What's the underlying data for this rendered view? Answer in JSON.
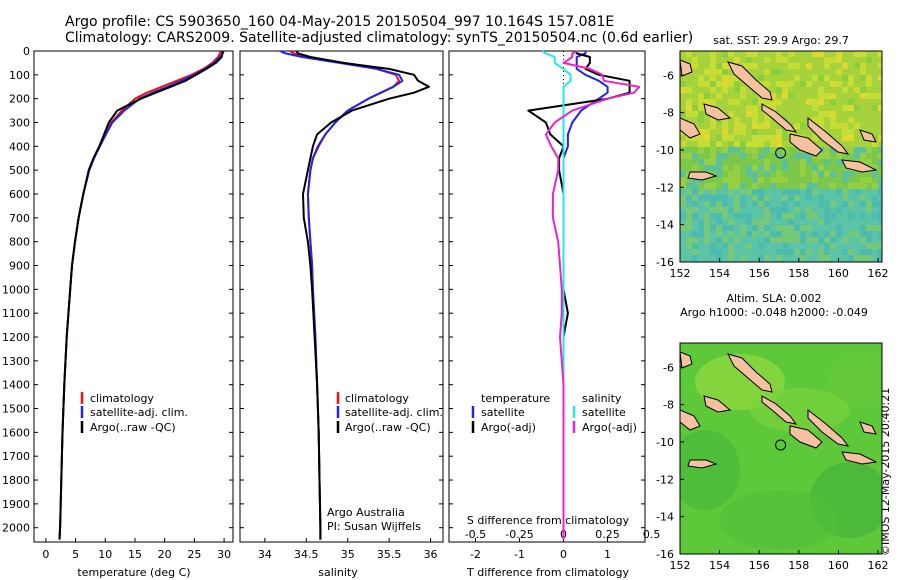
{
  "header": {
    "line1": "Argo profile: CS 5903650_160 04-May-2015 20150504_997 10.164S 157.081E",
    "line2": "Climatology: CARS2009. Satellite-adjusted climatology: synTS_20150504.nc (0.6d earlier)"
  },
  "credit": "©IMOS 12-May-2015 20:40:21",
  "colors": {
    "climatology": "#ee1111",
    "satellite": "#2222ee",
    "argo": "#000000",
    "satellite_s": "#22e8ee",
    "argo_s": "#ee22cc"
  },
  "chart_data": [
    {
      "type": "line",
      "title": "",
      "xlabel": "temperature (deg C)",
      "ylabel": "",
      "xlim": [
        -2,
        31.5
      ],
      "ylim": [
        2060,
        0
      ],
      "xticks": [
        0,
        5,
        10,
        15,
        20,
        25,
        30
      ],
      "yticks": [
        0,
        100,
        200,
        300,
        400,
        500,
        600,
        700,
        800,
        900,
        1000,
        1100,
        1200,
        1300,
        1400,
        1500,
        1600,
        1700,
        1800,
        1900,
        2000
      ],
      "legend": {
        "position": "bottom-left",
        "entries": [
          "climatology",
          "satellite-adj. clim.",
          "Argo(..raw -QC)"
        ]
      },
      "depth": [
        0,
        10,
        25,
        50,
        75,
        100,
        125,
        150,
        175,
        200,
        250,
        300,
        350,
        400,
        450,
        500,
        600,
        700,
        800,
        900,
        1000,
        1200,
        1400,
        1600,
        1800,
        2000,
        2050
      ],
      "series": [
        {
          "name": "climatology",
          "values": [
            29.4,
            29.3,
            29.0,
            28.0,
            26.5,
            24.5,
            22.0,
            19.5,
            17.0,
            15.0,
            12.8,
            11.0,
            10.0,
            9.0,
            8.1,
            7.3,
            6.3,
            5.5,
            4.9,
            4.4,
            4.1,
            3.5,
            3.1,
            2.8,
            2.6,
            2.4,
            2.3
          ]
        },
        {
          "name": "satellite-adj. clim.",
          "values": [
            29.9,
            29.8,
            29.3,
            28.3,
            26.8,
            25.0,
            22.8,
            20.5,
            18.0,
            15.8,
            13.2,
            11.2,
            10.1,
            9.1,
            8.1,
            7.3,
            6.3,
            5.5,
            4.9,
            4.4,
            4.1,
            3.5,
            3.1,
            2.8,
            2.6,
            2.4,
            2.3
          ]
        },
        {
          "name": "Argo(..raw -QC)",
          "values": [
            29.7,
            29.7,
            29.6,
            28.6,
            27.0,
            25.3,
            23.5,
            21.0,
            18.5,
            16.0,
            12.0,
            10.6,
            9.8,
            9.0,
            8.0,
            7.2,
            6.3,
            5.5,
            4.9,
            4.4,
            4.1,
            3.5,
            3.1,
            2.8,
            2.6,
            2.4,
            2.3
          ]
        }
      ]
    },
    {
      "type": "line",
      "title": "",
      "xlabel": "salinity",
      "ylabel": "",
      "xlim": [
        33.7,
        36.15
      ],
      "ylim": [
        2060,
        0
      ],
      "xticks": [
        34,
        34.5,
        35,
        35.5,
        36
      ],
      "legend": {
        "position": "bottom-right",
        "entries": [
          "climatology",
          "satellite-adj. clim.",
          "Argo(..raw -QC)"
        ]
      },
      "annotations": [
        "Argo Australia",
        "PI: Susan Wijffels"
      ],
      "depth": [
        0,
        10,
        25,
        50,
        75,
        100,
        125,
        150,
        175,
        200,
        250,
        300,
        350,
        400,
        450,
        500,
        600,
        700,
        800,
        900,
        1000,
        1200,
        1400,
        1600,
        1800,
        2000,
        2050
      ],
      "series": [
        {
          "name": "climatology",
          "values": [
            34.3,
            34.35,
            34.5,
            34.95,
            35.35,
            35.58,
            35.62,
            35.55,
            35.4,
            35.25,
            35.0,
            34.85,
            34.73,
            34.65,
            34.58,
            34.55,
            34.52,
            34.53,
            34.55,
            34.57,
            34.58,
            34.61,
            34.63,
            34.65,
            34.66,
            34.67,
            34.67
          ]
        },
        {
          "name": "satellite-adj. clim.",
          "values": [
            34.18,
            34.25,
            34.45,
            34.9,
            35.35,
            35.62,
            35.66,
            35.55,
            35.4,
            35.25,
            35.0,
            34.85,
            34.73,
            34.64,
            34.58,
            34.55,
            34.52,
            34.53,
            34.55,
            34.57,
            34.58,
            34.61,
            34.63,
            34.65,
            34.66,
            34.67,
            34.67
          ]
        },
        {
          "name": "Argo(..raw -QC)",
          "values": [
            34.38,
            34.4,
            34.55,
            34.95,
            35.5,
            35.8,
            35.85,
            35.98,
            35.8,
            35.5,
            35.05,
            34.8,
            34.63,
            34.58,
            34.55,
            34.52,
            34.46,
            34.47,
            34.52,
            34.55,
            34.57,
            34.6,
            34.63,
            34.65,
            34.66,
            34.67,
            34.67
          ]
        }
      ]
    },
    {
      "type": "line",
      "title": "",
      "xlabel": "T difference from climatology",
      "x2label": "S difference from climatology",
      "ylabel": "",
      "xlim": [
        -2.6,
        1.85
      ],
      "x2lim": [
        -0.65,
        0.4625
      ],
      "x2scale": "S difference = T axis / 4",
      "ylim": [
        2060,
        0
      ],
      "xticks": [
        -2,
        -1,
        0,
        1
      ],
      "xtick_labels": [
        "-2",
        "-1",
        "0",
        "1"
      ],
      "x2ticks": [
        -0.5,
        -0.25,
        0,
        0.25,
        0.5
      ],
      "x2tick_labels": [
        "-0.5",
        "-0.25",
        "0",
        "0.25",
        "0.5"
      ],
      "reference_line_at": 0,
      "legend": {
        "position": "bottom",
        "groups": [
          {
            "title": "temperature",
            "entries": [
              "satellite",
              "Argo(-adj)"
            ]
          },
          {
            "title": "salinity",
            "entries": [
              "satellite",
              "Argo(-adj)"
            ]
          }
        ]
      },
      "depth": [
        0,
        10,
        25,
        50,
        75,
        100,
        125,
        150,
        175,
        200,
        250,
        300,
        350,
        400,
        450,
        500,
        600,
        700,
        800,
        900,
        1000,
        1100,
        1200,
        1400,
        1600,
        1800,
        2000,
        2050
      ],
      "series": [
        {
          "name": "temperature satellite",
          "axis": "T",
          "values": [
            0.5,
            0.5,
            0.3,
            0.3,
            0.3,
            0.5,
            0.8,
            1.0,
            1.0,
            0.8,
            0.4,
            0.2,
            0.1,
            0.1,
            0,
            0,
            0,
            0,
            0,
            0,
            0,
            0,
            0,
            0,
            0,
            0,
            0,
            0
          ]
        },
        {
          "name": "temperature Argo(-adj)",
          "axis": "T",
          "values": [
            0.3,
            0.3,
            0.6,
            0.6,
            0.5,
            0.8,
            1.5,
            1.5,
            1.5,
            1.0,
            -0.8,
            -0.4,
            -0.3,
            0,
            -0.1,
            -0.1,
            0,
            0,
            0,
            0,
            0,
            0.1,
            0,
            0,
            0,
            0,
            0,
            0
          ]
        },
        {
          "name": "salinity satellite",
          "axis": "S",
          "values": [
            -0.12,
            -0.1,
            -0.05,
            -0.05,
            0.0,
            0.04,
            0.04,
            0.0,
            0.0,
            0.0,
            0.0,
            0.0,
            0.0,
            0.0,
            0.0,
            0.0,
            0.0,
            0.0,
            0.0,
            0.0,
            0.0,
            0.0,
            0.0,
            0.0,
            0.0,
            0.0,
            0.0,
            0.0
          ]
        },
        {
          "name": "salinity Argo(-adj)",
          "axis": "S",
          "values": [
            0.08,
            0.05,
            0.05,
            0.0,
            0.15,
            0.22,
            0.23,
            0.43,
            0.4,
            0.25,
            0.05,
            -0.05,
            -0.1,
            -0.07,
            -0.03,
            -0.03,
            -0.06,
            -0.06,
            -0.03,
            -0.02,
            -0.01,
            -0.01,
            -0.02,
            0.0,
            0.0,
            0.0,
            0.0,
            0.0
          ]
        }
      ]
    },
    {
      "type": "heatmap",
      "title": "sat. SST: 29.9  Argo: 29.7",
      "xlim": [
        152,
        162.2
      ],
      "ylim": [
        -16,
        -4.7
      ],
      "xticks": [
        152,
        154,
        156,
        158,
        160,
        162
      ],
      "yticks": [
        -6,
        -8,
        -10,
        -12,
        -14,
        -16
      ],
      "profile_marker": {
        "lon": 157.081,
        "lat": -10.164
      }
    },
    {
      "type": "heatmap",
      "title": "Altim. SLA: 0.002",
      "subtitle": "Argo h1000: -0.048 h2000: -0.049",
      "xlim": [
        152,
        162.2
      ],
      "ylim": [
        -16,
        -4.7
      ],
      "xticks": [
        152,
        154,
        156,
        158,
        160,
        162
      ],
      "yticks": [
        -6,
        -8,
        -10,
        -12,
        -14,
        -16
      ],
      "profile_marker": {
        "lon": 157.081,
        "lat": -10.164
      }
    }
  ]
}
